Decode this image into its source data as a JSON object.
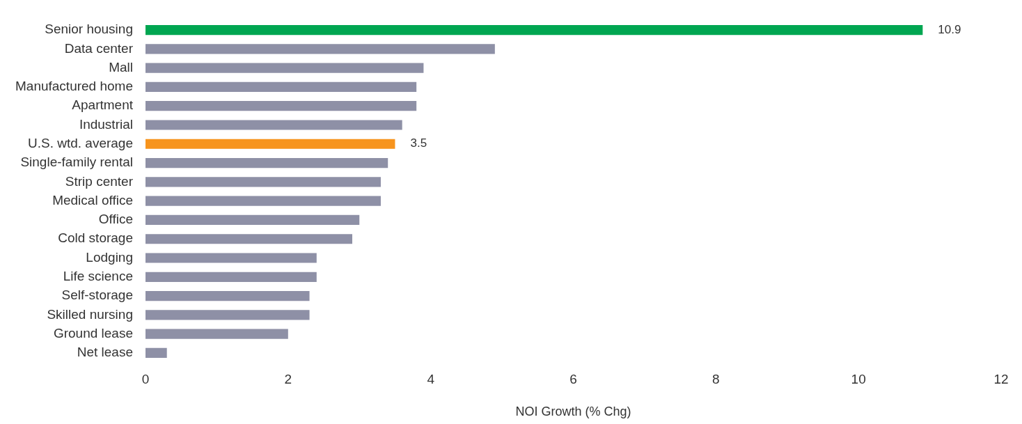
{
  "chart_data": {
    "type": "bar",
    "orientation": "horizontal",
    "xlabel": "NOI Growth (% Chg)",
    "categories": [
      "Senior housing",
      "Data center",
      "Mall",
      "Manufactured home",
      "Apartment",
      "Industrial",
      "U.S. wtd. average",
      "Single-family rental",
      "Strip center",
      "Medical office",
      "Office",
      "Cold storage",
      "Lodging",
      "Life science",
      "Self-storage",
      "Skilled nursing",
      "Ground lease",
      "Net lease"
    ],
    "values": [
      10.9,
      4.9,
      3.9,
      3.8,
      3.8,
      3.6,
      3.5,
      3.4,
      3.3,
      3.3,
      3.0,
      2.9,
      2.4,
      2.4,
      2.3,
      2.3,
      2.0,
      0.3
    ],
    "colors": [
      "#00a651",
      "#8e90a6",
      "#8e90a6",
      "#8e90a6",
      "#8e90a6",
      "#8e90a6",
      "#f7941d",
      "#8e90a6",
      "#8e90a6",
      "#8e90a6",
      "#8e90a6",
      "#8e90a6",
      "#8e90a6",
      "#8e90a6",
      "#8e90a6",
      "#8e90a6",
      "#8e90a6",
      "#8e90a6"
    ],
    "value_labels": [
      "10.9",
      null,
      null,
      null,
      null,
      null,
      "3.5",
      null,
      null,
      null,
      null,
      null,
      null,
      null,
      null,
      null,
      null,
      null
    ],
    "xlim": [
      0,
      12
    ],
    "xticks": [
      0,
      2,
      4,
      6,
      8,
      10,
      12
    ],
    "grid": false,
    "legend": false
  }
}
